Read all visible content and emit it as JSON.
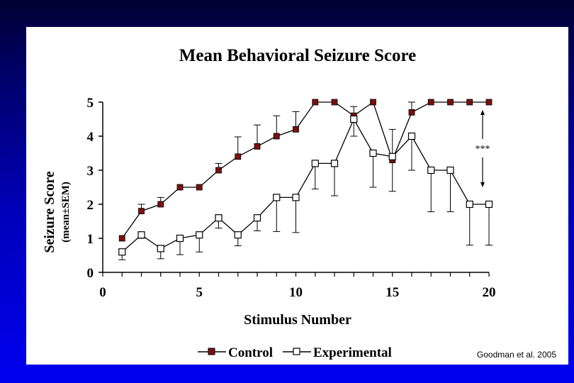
{
  "slide": {
    "background_top": "#000033",
    "background_bottom": "#0000f0",
    "source_note": "Goodman et al. 2005"
  },
  "chart_data": {
    "type": "line",
    "title": "Mean Behavioral Seizure Score",
    "xlabel": "Stimulus Number",
    "ylabel": "Seizure Score",
    "ylabel_sub": "(mean±SEM)",
    "xlim": [
      0,
      20
    ],
    "ylim": [
      0,
      5
    ],
    "xticks": [
      0,
      5,
      10,
      15,
      20
    ],
    "yticks": [
      0,
      1,
      2,
      3,
      4,
      5
    ],
    "grid": false,
    "legend_position": "bottom",
    "annotation": "***",
    "x": [
      1,
      2,
      3,
      4,
      5,
      6,
      7,
      8,
      9,
      10,
      11,
      12,
      13,
      14,
      15,
      16,
      17,
      18,
      19,
      20
    ],
    "series": [
      {
        "name": "Control",
        "marker": "filled-square",
        "color": "#7a1010",
        "values": [
          1.0,
          1.8,
          2.0,
          2.5,
          2.5,
          3.0,
          3.4,
          3.7,
          4.0,
          4.2,
          5.0,
          5.0,
          4.6,
          5.0,
          3.3,
          4.7,
          5.0,
          5.0,
          5.0,
          5.0
        ],
        "sem": [
          0,
          0.2,
          0.2,
          0,
          0,
          0.2,
          0.58,
          0.63,
          0.6,
          0.52,
          0,
          0,
          0.27,
          0,
          0.9,
          0.3,
          0,
          0,
          0,
          0
        ],
        "sem_direction": "up"
      },
      {
        "name": "Experimental",
        "marker": "open-square",
        "color": "#000000",
        "values": [
          0.6,
          1.1,
          0.7,
          1.0,
          1.1,
          1.6,
          1.1,
          1.6,
          2.2,
          2.2,
          3.2,
          3.2,
          4.5,
          3.5,
          3.4,
          4.0,
          3.0,
          3.0,
          2.0,
          2.0
        ],
        "sem": [
          0.23,
          0.1,
          0.3,
          0.48,
          0.5,
          0.3,
          0.32,
          0.38,
          1.0,
          1.03,
          0.75,
          0.95,
          0.5,
          1.0,
          1.02,
          1.0,
          1.22,
          1.22,
          1.2,
          1.2
        ],
        "sem_direction": "down"
      }
    ]
  }
}
